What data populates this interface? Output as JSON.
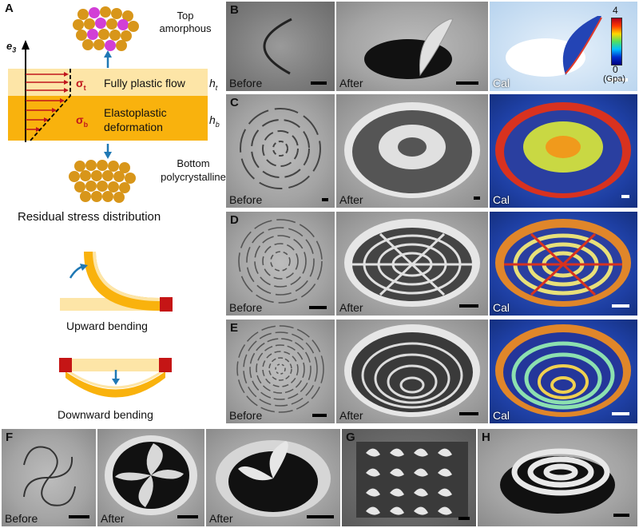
{
  "panels": {
    "a": "A",
    "b": "B",
    "c": "C",
    "d": "D",
    "e": "E",
    "f": "F",
    "g": "G",
    "h": "H"
  },
  "panel_a": {
    "top_label": "Top\namorphous",
    "axis_label": "e",
    "axis_sub": "3",
    "sigma_t": "σ",
    "sigma_t_sub": "t",
    "sigma_b": "σ",
    "sigma_b_sub": "b",
    "layer_top_text": "Fully plastic flow",
    "layer_bottom_text": "Elastoplastic\ndeformation",
    "ht": "h",
    "ht_sub": "t",
    "hb": "h",
    "hb_sub": "b",
    "bottom_label": "Bottom\npolycrystalline",
    "caption": "Residual stress distribution",
    "upward": "Upward bending",
    "downward": "Downward bending"
  },
  "labels": {
    "before": "Before",
    "after": "After",
    "cal": "Cal"
  },
  "colorbar": {
    "max": "4",
    "min": "0",
    "unit": "(Gpa)"
  },
  "colors": {
    "layer_top": "#fde5a7",
    "layer_bottom": "#f9b20d",
    "arrow_red": "#c0161d",
    "arrow_blue": "#1f78b4",
    "atom_gold": "#d8961a",
    "atom_magenta": "#d23fd6",
    "hinge": "#c51515"
  }
}
